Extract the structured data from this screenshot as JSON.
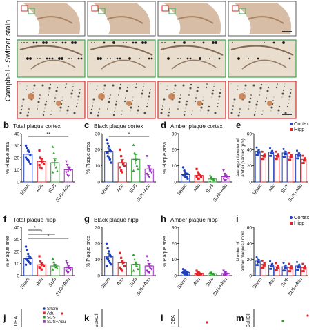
{
  "side_label": "Campbell - Switzer stain",
  "colors": {
    "sham": "#1f3fbf",
    "adu": "#e0232a",
    "sus": "#29a329",
    "susadu": "#9b2fc0",
    "cortex": "#1f3fbf",
    "hipp": "#e0232a",
    "row2_border": "#3aa650",
    "row3_border": "#d62e2e",
    "tissue": "#b6865c"
  },
  "image_rows": {
    "row1_count": 4,
    "row2_count": 4,
    "row3_count": 4
  },
  "groups": [
    "Sham",
    "Adu",
    "SUS",
    "SUS+Adu"
  ],
  "legend_cortex_hipp": [
    "Cortex",
    "Hipp"
  ],
  "panels": [
    {
      "id": "b",
      "letter": "b",
      "title": "Total plaque cortex",
      "ylabel": "% Plaque area",
      "ylim": [
        0,
        40
      ],
      "yticks": [
        "0",
        "10",
        "20",
        "30",
        "40"
      ],
      "means": [
        23,
        17,
        16,
        10
      ],
      "points": [
        [
          30,
          28,
          26,
          25,
          22,
          20,
          19,
          18,
          17,
          15
        ],
        [
          26,
          20,
          19,
          17,
          15,
          14,
          12,
          11
        ],
        [
          29,
          24,
          18,
          12,
          9,
          8
        ],
        [
          17,
          14,
          12,
          11,
          10,
          8,
          6,
          5
        ]
      ],
      "errors": [
        2,
        2,
        3,
        2
      ],
      "sig": [
        {
          "from": 0,
          "to": 3,
          "label": "**",
          "level": 1
        }
      ]
    },
    {
      "id": "c",
      "letter": "c",
      "title": "Black plaque cortex",
      "ylabel": "% Plaque area",
      "ylim": [
        0,
        30
      ],
      "yticks": [
        "0",
        "10",
        "20",
        "30"
      ],
      "means": [
        19,
        12,
        14,
        8
      ],
      "points": [
        [
          26,
          24,
          22,
          20,
          19,
          18,
          16,
          15,
          14,
          12
        ],
        [
          20,
          16,
          13,
          11,
          10,
          9,
          7,
          6
        ],
        [
          23,
          18,
          14,
          10,
          8,
          7
        ],
        [
          16,
          10,
          9,
          7,
          6,
          5,
          4,
          3
        ]
      ],
      "errors": [
        2,
        2,
        3,
        2
      ],
      "sig": [
        {
          "from": 0,
          "to": 3,
          "label": "*",
          "level": 1
        }
      ]
    },
    {
      "id": "d",
      "letter": "d",
      "title": "Amber plaque cortex",
      "ylabel": "% Plaque area",
      "ylim": [
        0,
        30
      ],
      "yticks": [
        "0",
        "10",
        "20",
        "30"
      ],
      "means": [
        4.5,
        4,
        1.8,
        3.2
      ],
      "points": [
        [
          9,
          7,
          6,
          5,
          5,
          4,
          4,
          3,
          3,
          2
        ],
        [
          8,
          6,
          5,
          4,
          3,
          3,
          2,
          2
        ],
        [
          4,
          3,
          2,
          1,
          1,
          0.5
        ],
        [
          7,
          5,
          4,
          3,
          2,
          2,
          1,
          1
        ]
      ],
      "errors": [
        0.8,
        0.8,
        0.6,
        0.8
      ],
      "sig": []
    },
    {
      "id": "e",
      "letter": "e",
      "title": "",
      "ylabel": "Average diameter of amber plaques (µm)",
      "ylim": [
        0,
        60
      ],
      "yticks": [
        "0",
        "20",
        "40",
        "60"
      ],
      "paired": true,
      "means_cortex": [
        38,
        37,
        36,
        34
      ],
      "means_hipp": [
        33,
        33,
        32,
        28
      ],
      "errors_cortex": [
        2,
        2,
        3,
        3
      ],
      "errors_hipp": [
        2,
        2,
        3,
        3
      ],
      "legend": [
        "Cortex",
        "Hipp"
      ],
      "sig": []
    },
    {
      "id": "f",
      "letter": "f",
      "title": "Total plaque hipp",
      "ylabel": "% Plaque area",
      "ylim": [
        0,
        40
      ],
      "yticks": [
        "0",
        "10",
        "20",
        "30",
        "40"
      ],
      "means": [
        14,
        9,
        8,
        6.5
      ],
      "points": [
        [
          24,
          21,
          18,
          16,
          15,
          14,
          13,
          12,
          11,
          10,
          9
        ],
        [
          16,
          12,
          10,
          9,
          8,
          7,
          6,
          5
        ],
        [
          14,
          11,
          9,
          7,
          6,
          5
        ],
        [
          12,
          10,
          8,
          6,
          5,
          4,
          3,
          3
        ]
      ],
      "errors": [
        2,
        1.5,
        1.5,
        1.5
      ],
      "sig": [
        {
          "from": 0,
          "to": 1,
          "label": "*",
          "level": 1
        },
        {
          "from": 0,
          "to": 2,
          "label": "*",
          "level": 2
        },
        {
          "from": 0,
          "to": 3,
          "label": "*",
          "level": 3
        }
      ]
    },
    {
      "id": "g",
      "letter": "g",
      "title": "Black plaque hipp",
      "ylabel": "% Plaque area",
      "ylim": [
        0,
        30
      ],
      "yticks": [
        "0",
        "10",
        "20",
        "30"
      ],
      "means": [
        12,
        8,
        7,
        6
      ],
      "points": [
        [
          20,
          17,
          15,
          13,
          12,
          11,
          10,
          9,
          8,
          7,
          6
        ],
        [
          14,
          11,
          9,
          8,
          6,
          5,
          4,
          3
        ],
        [
          13,
          10,
          8,
          6,
          4,
          3
        ],
        [
          12,
          9,
          7,
          5,
          4,
          3,
          2,
          2
        ]
      ],
      "errors": [
        2,
        1.5,
        1.5,
        1.5
      ],
      "sig": []
    },
    {
      "id": "h",
      "letter": "h",
      "title": "Amber plaque hipp",
      "ylabel": "% Plaque area",
      "ylim": [
        0,
        30
      ],
      "yticks": [
        "0",
        "10",
        "20",
        "30"
      ],
      "means": [
        2,
        1.5,
        1.2,
        1.3
      ],
      "points": [
        [
          4,
          3,
          3,
          2,
          2,
          2,
          1,
          1,
          1,
          0.5
        ],
        [
          3,
          2,
          2,
          1,
          1,
          1,
          0.5,
          0.5
        ],
        [
          2,
          2,
          1,
          1,
          0.5,
          0.5
        ],
        [
          3,
          2,
          2,
          1,
          1,
          0.5,
          0.5,
          0.5
        ]
      ],
      "errors": [
        0.4,
        0.4,
        0.3,
        0.4
      ],
      "sig": []
    },
    {
      "id": "i",
      "letter": "i",
      "title": "",
      "ylabel": "Number of amber plaques / mm²",
      "ylim": [
        0,
        60
      ],
      "yticks": [
        "0",
        "20",
        "40",
        "60"
      ],
      "paired": true,
      "means_cortex": [
        18,
        13,
        11,
        12
      ],
      "means_hipp": [
        14,
        11,
        10,
        10
      ],
      "errors_cortex": [
        4,
        2,
        2,
        2
      ],
      "errors_hipp": [
        3,
        2,
        2,
        2
      ],
      "legend": [
        "Cortex",
        "Hipp"
      ],
      "sig": []
    }
  ],
  "bottom_row": [
    {
      "letter": "j",
      "ylabel": "DEA"
    },
    {
      "letter": "k",
      "ylabel": "GuHCl"
    },
    {
      "letter": "l",
      "ylabel": "l DEA"
    },
    {
      "letter": "m",
      "ylabel": "GuHCl"
    }
  ],
  "bottom_legend": [
    "Sham",
    "Adu",
    "SUS",
    "SUS+Adu"
  ]
}
